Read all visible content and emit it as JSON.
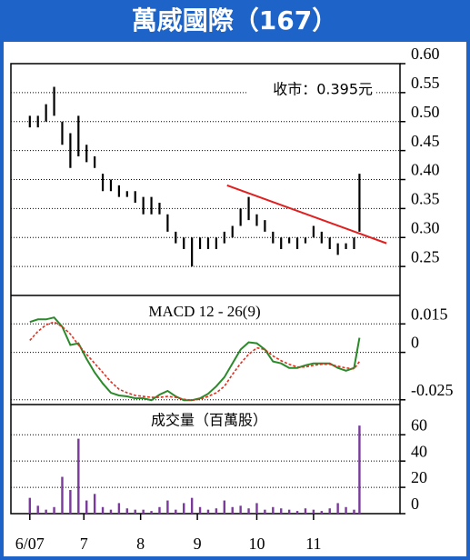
{
  "chart_data": [
    {
      "type": "hilo",
      "title": "萬威國際（167）",
      "annotation": "收市：0.395元",
      "color": "#000000",
      "x": [
        0,
        3,
        6,
        9,
        12,
        15,
        18,
        21,
        24,
        27,
        30,
        33,
        36,
        39,
        42,
        45,
        48,
        51,
        54,
        57,
        60,
        63,
        66,
        69,
        72,
        75,
        78,
        81,
        84,
        87,
        90,
        93,
        96,
        99,
        102,
        105,
        108,
        111,
        114,
        117,
        120,
        122
      ],
      "high": [
        0.51,
        0.51,
        0.53,
        0.56,
        0.5,
        0.48,
        0.51,
        0.46,
        0.44,
        0.41,
        0.4,
        0.39,
        0.38,
        0.38,
        0.37,
        0.37,
        0.36,
        0.34,
        0.31,
        0.3,
        0.3,
        0.3,
        0.3,
        0.3,
        0.31,
        0.32,
        0.35,
        0.37,
        0.34,
        0.33,
        0.31,
        0.3,
        0.3,
        0.3,
        0.3,
        0.32,
        0.31,
        0.3,
        0.29,
        0.29,
        0.3,
        0.41
      ],
      "low": [
        0.49,
        0.49,
        0.5,
        0.51,
        0.46,
        0.42,
        0.44,
        0.43,
        0.42,
        0.38,
        0.38,
        0.37,
        0.37,
        0.36,
        0.34,
        0.34,
        0.34,
        0.31,
        0.29,
        0.28,
        0.25,
        0.28,
        0.28,
        0.28,
        0.29,
        0.3,
        0.32,
        0.33,
        0.32,
        0.31,
        0.29,
        0.28,
        0.29,
        0.28,
        0.29,
        0.3,
        0.29,
        0.28,
        0.27,
        0.28,
        0.28,
        0.31
      ],
      "trendline": {
        "x": [
          73,
          132
        ],
        "values": [
          0.39,
          0.29
        ],
        "color": "#e02020"
      },
      "xlim": [
        -7,
        137
      ],
      "ylim": [
        0.2,
        0.6
      ],
      "yticks": [
        {
          "value": 0.6,
          "label": "0.60"
        },
        0.55,
        {
          "value": 0.5,
          "label": "0.50"
        },
        0.45,
        {
          "value": 0.4,
          "label": "0.40"
        },
        0.35,
        {
          "value": 0.3,
          "label": "0.30"
        },
        0.25
      ],
      "grid": true
    },
    {
      "type": "line",
      "title": "MACD 12 - 26(9)",
      "x": [
        0,
        3,
        6,
        9,
        12,
        15,
        18,
        21,
        24,
        27,
        30,
        33,
        36,
        39,
        42,
        45,
        48,
        51,
        54,
        57,
        60,
        63,
        66,
        69,
        72,
        75,
        78,
        81,
        84,
        87,
        90,
        93,
        96,
        99,
        102,
        105,
        108,
        111,
        114,
        117,
        120,
        122
      ],
      "series": [
        {
          "color": "#2a8a2a",
          "values": [
            0.016,
            0.0174,
            0.0174,
            0.0184,
            0.0135,
            0.0039,
            0.0048,
            -0.0034,
            -0.0106,
            -0.0164,
            -0.0213,
            -0.0227,
            -0.0232,
            -0.0242,
            -0.0242,
            -0.0252,
            -0.0223,
            -0.0203,
            -0.0232,
            -0.0252,
            -0.0252,
            -0.0242,
            -0.0218,
            -0.0179,
            -0.0131,
            -0.0058,
            0.0015,
            0.0053,
            0.0048,
            0.0015,
            -0.0048,
            -0.0058,
            -0.0082,
            -0.0082,
            -0.0068,
            -0.0058,
            -0.0058,
            -0.0058,
            -0.0082,
            -0.0097,
            -0.0082,
            0.0077
          ]
        },
        {
          "color": "#e03020",
          "values": [
            0.0063,
            0.0111,
            0.0145,
            0.016,
            0.0135,
            0.0097,
            0.0039,
            -0.001,
            -0.0058,
            -0.0106,
            -0.0155,
            -0.0194,
            -0.0213,
            -0.0227,
            -0.0232,
            -0.0237,
            -0.0237,
            -0.0232,
            -0.0237,
            -0.0247,
            -0.0252,
            -0.0247,
            -0.0232,
            -0.0213,
            -0.0179,
            -0.0116,
            -0.0058,
            -0.001,
            0.0024,
            0.0015,
            -0.0019,
            -0.0044,
            -0.0063,
            -0.0077,
            -0.0077,
            -0.0068,
            -0.0063,
            -0.0063,
            -0.0073,
            -0.0082,
            -0.0087,
            -0.0048
          ]
        }
      ],
      "xlim": [
        -7,
        137
      ],
      "ylim": [
        -0.0275,
        0.03
      ],
      "yticks": [
        0.015,
        0,
        -0.025
      ],
      "grid": true
    },
    {
      "type": "bar",
      "title": "成交量（百萬股）",
      "color": "#7a3a9a",
      "x": [
        0,
        3,
        6,
        9,
        12,
        15,
        18,
        21,
        24,
        27,
        30,
        33,
        36,
        39,
        42,
        45,
        48,
        51,
        54,
        57,
        60,
        63,
        66,
        69,
        72,
        75,
        78,
        81,
        84,
        87,
        90,
        93,
        96,
        99,
        102,
        105,
        108,
        111,
        114,
        117,
        120,
        122
      ],
      "values": [
        12,
        6,
        3,
        5,
        28,
        18,
        57,
        10,
        15,
        5,
        3,
        8,
        4,
        3,
        3,
        2,
        5,
        10,
        3,
        8,
        12,
        5,
        3,
        4,
        10,
        5,
        6,
        4,
        8,
        3,
        5,
        4,
        3,
        2,
        4,
        3,
        2,
        4,
        8,
        5,
        3,
        67
      ],
      "xlim": [
        -7,
        137
      ],
      "ylim": [
        0,
        83
      ],
      "yticks": [
        60,
        40,
        20,
        0
      ],
      "xticks": [
        {
          "value": 0,
          "label": "6/07"
        },
        {
          "value": 20,
          "label": "7"
        },
        {
          "value": 41,
          "label": "8"
        },
        {
          "value": 62,
          "label": "9"
        },
        {
          "value": 84,
          "label": "10"
        },
        {
          "value": 105,
          "label": "11"
        }
      ],
      "grid": true
    }
  ]
}
